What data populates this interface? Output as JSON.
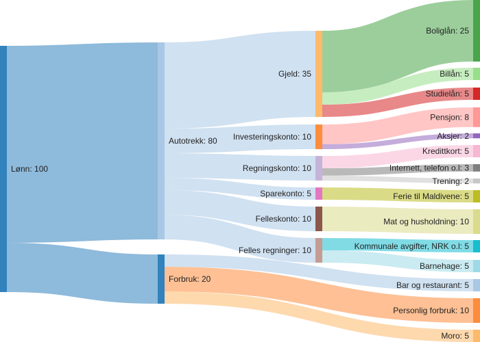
{
  "chart_data": {
    "type": "sankey",
    "nodes": [
      {
        "id": "lonn",
        "label": "Lønn: 100",
        "value": 100,
        "color": "#3182bd"
      },
      {
        "id": "autotrekk",
        "label": "Autotrekk: 80",
        "value": 80,
        "color": "#a9c8e6"
      },
      {
        "id": "forbruk",
        "label": "Forbruk: 20",
        "value": 20,
        "color": "#3182bd"
      },
      {
        "id": "gjeld",
        "label": "Gjeld: 35",
        "value": 35,
        "color": "#fdba6b"
      },
      {
        "id": "investeringskonto",
        "label": "Investeringskonto: 10",
        "value": 10,
        "color": "#fd8d3c"
      },
      {
        "id": "regningskonto",
        "label": "Regningskonto: 10",
        "value": 10,
        "color": "#c6b3d9"
      },
      {
        "id": "sparekonto",
        "label": "Sparekonto: 5",
        "value": 5,
        "color": "#e377c2"
      },
      {
        "id": "felleskonto",
        "label": "Felleskonto: 10",
        "value": 10,
        "color": "#8c564b"
      },
      {
        "id": "felles_regninger",
        "label": "Felles regninger: 10",
        "value": 10,
        "color": "#c49c94"
      },
      {
        "id": "boliglan",
        "label": "Boliglån: 25",
        "value": 25,
        "color": "#4aa54a"
      },
      {
        "id": "billan",
        "label": "Billån: 5",
        "value": 5,
        "color": "#98df8a"
      },
      {
        "id": "studielan",
        "label": "Studielån: 5",
        "value": 5,
        "color": "#d62728"
      },
      {
        "id": "pensjon",
        "label": "Pensjon: 8",
        "value": 8,
        "color": "#ff9896"
      },
      {
        "id": "aksjer",
        "label": "Aksjer: 2",
        "value": 2,
        "color": "#9467bd"
      },
      {
        "id": "kredittkort",
        "label": "Kredittkort: 5",
        "value": 5,
        "color": "#f7b6d2"
      },
      {
        "id": "internett",
        "label": "Internett, telefon o.l: 3",
        "value": 3,
        "color": "#7f7f7f"
      },
      {
        "id": "trening",
        "label": "Trening: 2",
        "value": 2,
        "color": "#c7c7c7"
      },
      {
        "id": "ferie",
        "label": "Ferie til Maldivene: 5",
        "value": 5,
        "color": "#bcbd22"
      },
      {
        "id": "mat",
        "label": "Mat og husholdning: 10",
        "value": 10,
        "color": "#dbdb8d"
      },
      {
        "id": "kommunale",
        "label": "Kommunale avgifter, NRK o.l: 5",
        "value": 5,
        "color": "#17becf"
      },
      {
        "id": "barnehage",
        "label": "Barnehage: 5",
        "value": 5,
        "color": "#9edae5"
      },
      {
        "id": "bar",
        "label": "Bar og restaurant: 5",
        "value": 5,
        "color": "#a9c8e6"
      },
      {
        "id": "personlig",
        "label": "Personlig forbruk: 10",
        "value": 10,
        "color": "#fd8d3c"
      },
      {
        "id": "moro",
        "label": "Moro: 5",
        "value": 5,
        "color": "#fdba6b"
      }
    ],
    "links": [
      {
        "source": "lonn",
        "target": "autotrekk",
        "value": 80
      },
      {
        "source": "lonn",
        "target": "forbruk",
        "value": 20
      },
      {
        "source": "autotrekk",
        "target": "gjeld",
        "value": 35
      },
      {
        "source": "autotrekk",
        "target": "investeringskonto",
        "value": 10
      },
      {
        "source": "autotrekk",
        "target": "regningskonto",
        "value": 10
      },
      {
        "source": "autotrekk",
        "target": "sparekonto",
        "value": 5
      },
      {
        "source": "autotrekk",
        "target": "felleskonto",
        "value": 10
      },
      {
        "source": "autotrekk",
        "target": "felles_regninger",
        "value": 10
      },
      {
        "source": "gjeld",
        "target": "boliglan",
        "value": 25
      },
      {
        "source": "gjeld",
        "target": "billan",
        "value": 5
      },
      {
        "source": "gjeld",
        "target": "studielan",
        "value": 5
      },
      {
        "source": "investeringskonto",
        "target": "pensjon",
        "value": 8
      },
      {
        "source": "investeringskonto",
        "target": "aksjer",
        "value": 2
      },
      {
        "source": "regningskonto",
        "target": "kredittkort",
        "value": 5
      },
      {
        "source": "regningskonto",
        "target": "internett",
        "value": 3
      },
      {
        "source": "regningskonto",
        "target": "trening",
        "value": 2
      },
      {
        "source": "sparekonto",
        "target": "ferie",
        "value": 5
      },
      {
        "source": "felleskonto",
        "target": "mat",
        "value": 10
      },
      {
        "source": "felles_regninger",
        "target": "kommunale",
        "value": 5
      },
      {
        "source": "felles_regninger",
        "target": "barnehage",
        "value": 5
      },
      {
        "source": "forbruk",
        "target": "bar",
        "value": 5
      },
      {
        "source": "forbruk",
        "target": "personlig",
        "value": 10
      },
      {
        "source": "forbruk",
        "target": "moro",
        "value": 5
      }
    ]
  }
}
